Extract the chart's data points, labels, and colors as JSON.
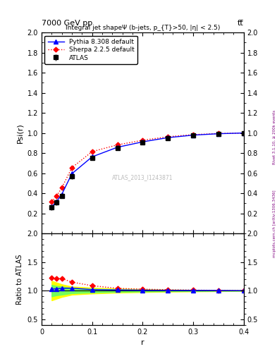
{
  "title_top": "7000 GeV pp",
  "title_right": "tt̅",
  "plot_title": "Integral jet shapeΨ (b-jets, p_{T}>50, |η| < 2.5)",
  "xlabel": "r",
  "ylabel_main": "Psi(r)",
  "ylabel_ratio": "Ratio to ATLAS",
  "watermark": "ATLAS_2013_I1243871",
  "right_label": "mcplots.cern.ch [arXiv:1306.3436]",
  "right_label2": "Rivet 3.1.10, ≥ 200k events",
  "r_values": [
    0.02,
    0.03,
    0.04,
    0.06,
    0.1,
    0.15,
    0.2,
    0.25,
    0.3,
    0.35,
    0.4
  ],
  "atlas_values": [
    0.258,
    0.31,
    0.375,
    0.57,
    0.75,
    0.848,
    0.905,
    0.948,
    0.975,
    0.99,
    1.0
  ],
  "atlas_errors": [
    0.025,
    0.025,
    0.025,
    0.025,
    0.02,
    0.015,
    0.012,
    0.01,
    0.008,
    0.006,
    0.004
  ],
  "pythia_values": [
    0.265,
    0.32,
    0.39,
    0.595,
    0.763,
    0.858,
    0.912,
    0.954,
    0.979,
    0.993,
    1.0
  ],
  "sherpa_values": [
    0.315,
    0.375,
    0.455,
    0.655,
    0.815,
    0.882,
    0.928,
    0.963,
    0.984,
    0.995,
    1.0
  ],
  "atlas_color": "#000000",
  "pythia_color": "#0000ff",
  "sherpa_color": "#ff0000",
  "ylim_main": [
    0.0,
    2.0
  ],
  "ylim_ratio": [
    0.4,
    2.0
  ],
  "yticks_main": [
    0.2,
    0.4,
    0.6,
    0.8,
    1.0,
    1.2,
    1.4,
    1.6,
    1.8,
    2.0
  ],
  "yticks_ratio": [
    0.5,
    1.0,
    1.5,
    2.0
  ],
  "xlim": [
    0.0,
    0.4
  ],
  "xticks": [
    0.0,
    0.1,
    0.2,
    0.3,
    0.4
  ],
  "yellow_band_lo": [
    0.83,
    0.86,
    0.89,
    0.93,
    0.95,
    0.965,
    0.975,
    0.982,
    0.987,
    0.991,
    0.995
  ],
  "yellow_band_hi": [
    1.17,
    1.14,
    1.11,
    1.07,
    1.05,
    1.035,
    1.025,
    1.018,
    1.013,
    1.009,
    1.005
  ],
  "green_band_lo": [
    0.9,
    0.92,
    0.93,
    0.955,
    0.968,
    0.978,
    0.984,
    0.989,
    0.992,
    0.995,
    0.997
  ],
  "green_band_hi": [
    1.1,
    1.08,
    1.07,
    1.045,
    1.032,
    1.022,
    1.016,
    1.011,
    1.008,
    1.005,
    1.003
  ]
}
